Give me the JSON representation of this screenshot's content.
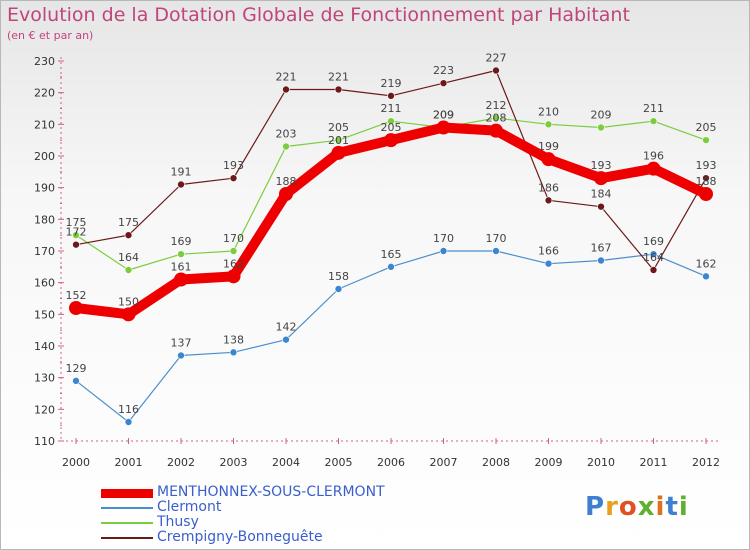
{
  "title": "Evolution de la Dotation Globale de Fonctionnement par Habitant",
  "subtitle": "(en € et par an)",
  "logo_text": "Proxiti",
  "chart_data": {
    "type": "line",
    "x": [
      "2000",
      "2001",
      "2002",
      "2003",
      "2004",
      "2005",
      "2006",
      "2007",
      "2008",
      "2009",
      "2010",
      "2011",
      "2012"
    ],
    "ylim": [
      110,
      230
    ],
    "yticks": [
      110,
      120,
      130,
      140,
      150,
      160,
      170,
      180,
      190,
      200,
      210,
      220,
      230
    ],
    "grid": false,
    "legend_position": "bottom-left",
    "series": [
      {
        "name": "MENTHONNEX-SOUS-CLERMONT",
        "color": "#ee0000",
        "values": [
          152,
          150,
          161,
          162,
          188,
          201,
          205,
          209,
          208,
          199,
          193,
          196,
          188
        ]
      },
      {
        "name": "Clermont",
        "color": "#4a8fcc",
        "values": [
          129,
          116,
          137,
          138,
          142,
          158,
          165,
          170,
          170,
          166,
          167,
          169,
          162
        ]
      },
      {
        "name": "Thusy",
        "color": "#7ccd3e",
        "values": [
          175,
          164,
          169,
          170,
          203,
          205,
          211,
          209,
          212,
          210,
          209,
          211,
          205
        ]
      },
      {
        "name": "Crempigny-Bonneguête",
        "color": "#6b1a1a",
        "values": [
          172,
          175,
          191,
          193,
          221,
          221,
          219,
          223,
          227,
          186,
          184,
          164,
          193
        ]
      }
    ]
  }
}
